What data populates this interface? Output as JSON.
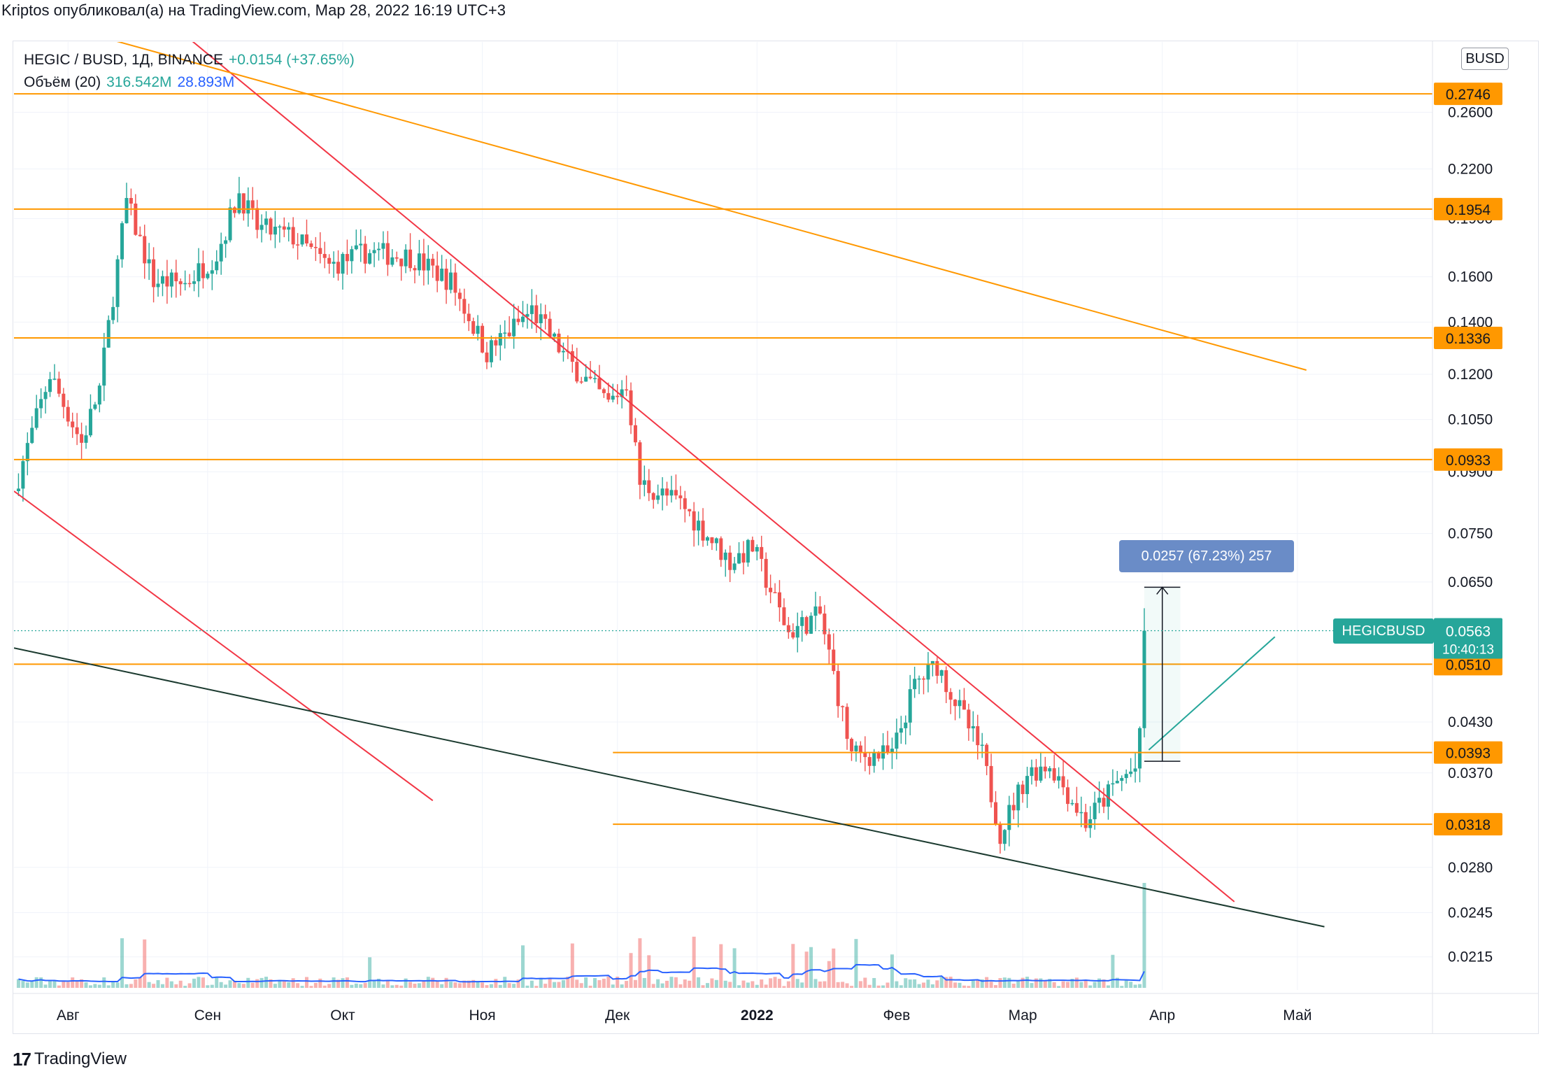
{
  "caption": "Kriptos опубликовал(а) на TradingView.com, Мар 28, 2022 16:19 UTC+3",
  "legend": {
    "symbol": "HEGIC / BUSD, 1Д, BINANCE",
    "change": "+0.0154 (+37.65%)",
    "volume_label": "Объём (20)",
    "volume_value": "316.542M",
    "volume_ma": "28.893M"
  },
  "currency_badge": "BUSD",
  "measure_label": "0.0257 (67.23%) 257",
  "symbol_tag": "HEGICBUSD",
  "price_tag": {
    "price": "0.0563",
    "countdown": "10:40:13"
  },
  "footer": {
    "brand": "TradingView"
  },
  "colors": {
    "up": "#26a69a",
    "down": "#ef5350",
    "level": "#ff9800",
    "trend_red": "#f23645",
    "trend_black": "#1b3a2f",
    "volume_ma": "#2962ff"
  },
  "chart_data": {
    "type": "candlestick",
    "y_scale": "log",
    "y_range": [
      0.0195,
      0.32
    ],
    "x_range": [
      "2021-07-20",
      "2022-05-31"
    ],
    "y_ticks": [
      "0.2600",
      "0.2200",
      "0.1900",
      "0.1600",
      "0.1400",
      "0.1200",
      "0.1050",
      "0.0900",
      "0.0750",
      "0.0650",
      "0.0430",
      "0.0370",
      "0.0280",
      "0.0245",
      "0.0215"
    ],
    "x_ticks": [
      {
        "date": "2021-08-01",
        "label": "Авг",
        "bold": false
      },
      {
        "date": "2021-09-01",
        "label": "Сен",
        "bold": false
      },
      {
        "date": "2021-10-01",
        "label": "Окт",
        "bold": false
      },
      {
        "date": "2021-11-01",
        "label": "Ноя",
        "bold": false
      },
      {
        "date": "2021-12-01",
        "label": "Дек",
        "bold": false
      },
      {
        "date": "2022-01-01",
        "label": "2022",
        "bold": true
      },
      {
        "date": "2022-02-01",
        "label": "Фев",
        "bold": false
      },
      {
        "date": "2022-03-01",
        "label": "Мар",
        "bold": false
      },
      {
        "date": "2022-04-01",
        "label": "Апр",
        "bold": false
      },
      {
        "date": "2022-05-01",
        "label": "Май",
        "bold": false
      }
    ],
    "levels": [
      {
        "price": 0.2746,
        "label": "0.2746",
        "from": "2021-07-20"
      },
      {
        "price": 0.1954,
        "label": "0.1954",
        "from": "2021-07-20"
      },
      {
        "price": 0.1336,
        "label": "0.1336",
        "from": "2021-07-20"
      },
      {
        "price": 0.0933,
        "label": "0.0933",
        "from": "2021-07-20"
      },
      {
        "price": 0.051,
        "label": "0.0510",
        "from": "2021-07-20"
      },
      {
        "price": 0.0393,
        "label": "0.0393",
        "from": "2021-11-30"
      },
      {
        "price": 0.0318,
        "label": "0.0318",
        "from": "2021-11-30"
      }
    ],
    "last_price": 0.0563,
    "trendlines": [
      {
        "color": "red",
        "p1": [
          "2021-08-26",
          0.33
        ],
        "p2": [
          "2022-04-17",
          0.0253
        ]
      },
      {
        "color": "red",
        "p1": [
          "2021-07-20",
          0.085
        ],
        "p2": [
          "2021-10-21",
          0.0341
        ]
      },
      {
        "color": "orange",
        "p1": [
          "2021-08-04",
          0.33
        ],
        "p2": [
          "2022-05-03",
          0.1215
        ]
      },
      {
        "color": "black",
        "p1": [
          "2021-07-20",
          0.0535
        ],
        "p2": [
          "2022-05-07",
          0.0235
        ]
      },
      {
        "color": "teal",
        "p1": [
          "2022-03-29",
          0.0396
        ],
        "p2": [
          "2022-04-26",
          0.0553
        ]
      }
    ],
    "measure": {
      "from_date": "2022-03-28",
      "to_date": "2022-04-05",
      "low": 0.0383,
      "high": 0.064
    },
    "anchors": [
      [
        "2021-07-20",
        0.085
      ],
      [
        "2021-07-28",
        0.12
      ],
      [
        "2021-08-04",
        0.098
      ],
      [
        "2021-08-08",
        0.115
      ],
      [
        "2021-08-14",
        0.2
      ],
      [
        "2021-08-20",
        0.158
      ],
      [
        "2021-08-27",
        0.157
      ],
      [
        "2021-09-03",
        0.171
      ],
      [
        "2021-09-08",
        0.205
      ],
      [
        "2021-09-12",
        0.185
      ],
      [
        "2021-09-20",
        0.18
      ],
      [
        "2021-09-28",
        0.165
      ],
      [
        "2021-10-06",
        0.172
      ],
      [
        "2021-10-16",
        0.17
      ],
      [
        "2021-10-25",
        0.158
      ],
      [
        "2021-11-02",
        0.128
      ],
      [
        "2021-11-12",
        0.145
      ],
      [
        "2021-11-20",
        0.125
      ],
      [
        "2021-11-29",
        0.11
      ],
      [
        "2021-12-03",
        0.117
      ],
      [
        "2021-12-06",
        0.087
      ],
      [
        "2021-12-15",
        0.082
      ],
      [
        "2021-12-26",
        0.069
      ],
      [
        "2021-12-31",
        0.072
      ],
      [
        "2022-01-08",
        0.056
      ],
      [
        "2022-01-15",
        0.059
      ],
      [
        "2022-01-22",
        0.039
      ],
      [
        "2022-01-31",
        0.039
      ],
      [
        "2022-02-05",
        0.048
      ],
      [
        "2022-02-10",
        0.051
      ],
      [
        "2022-02-20",
        0.039
      ],
      [
        "2022-02-24",
        0.031
      ],
      [
        "2022-03-02",
        0.037
      ],
      [
        "2022-03-07",
        0.038
      ],
      [
        "2022-03-15",
        0.032
      ],
      [
        "2022-03-22",
        0.036
      ],
      [
        "2022-03-26",
        0.0375
      ],
      [
        "2022-03-27",
        0.0409
      ],
      [
        "2022-03-28",
        0.0563
      ]
    ]
  }
}
